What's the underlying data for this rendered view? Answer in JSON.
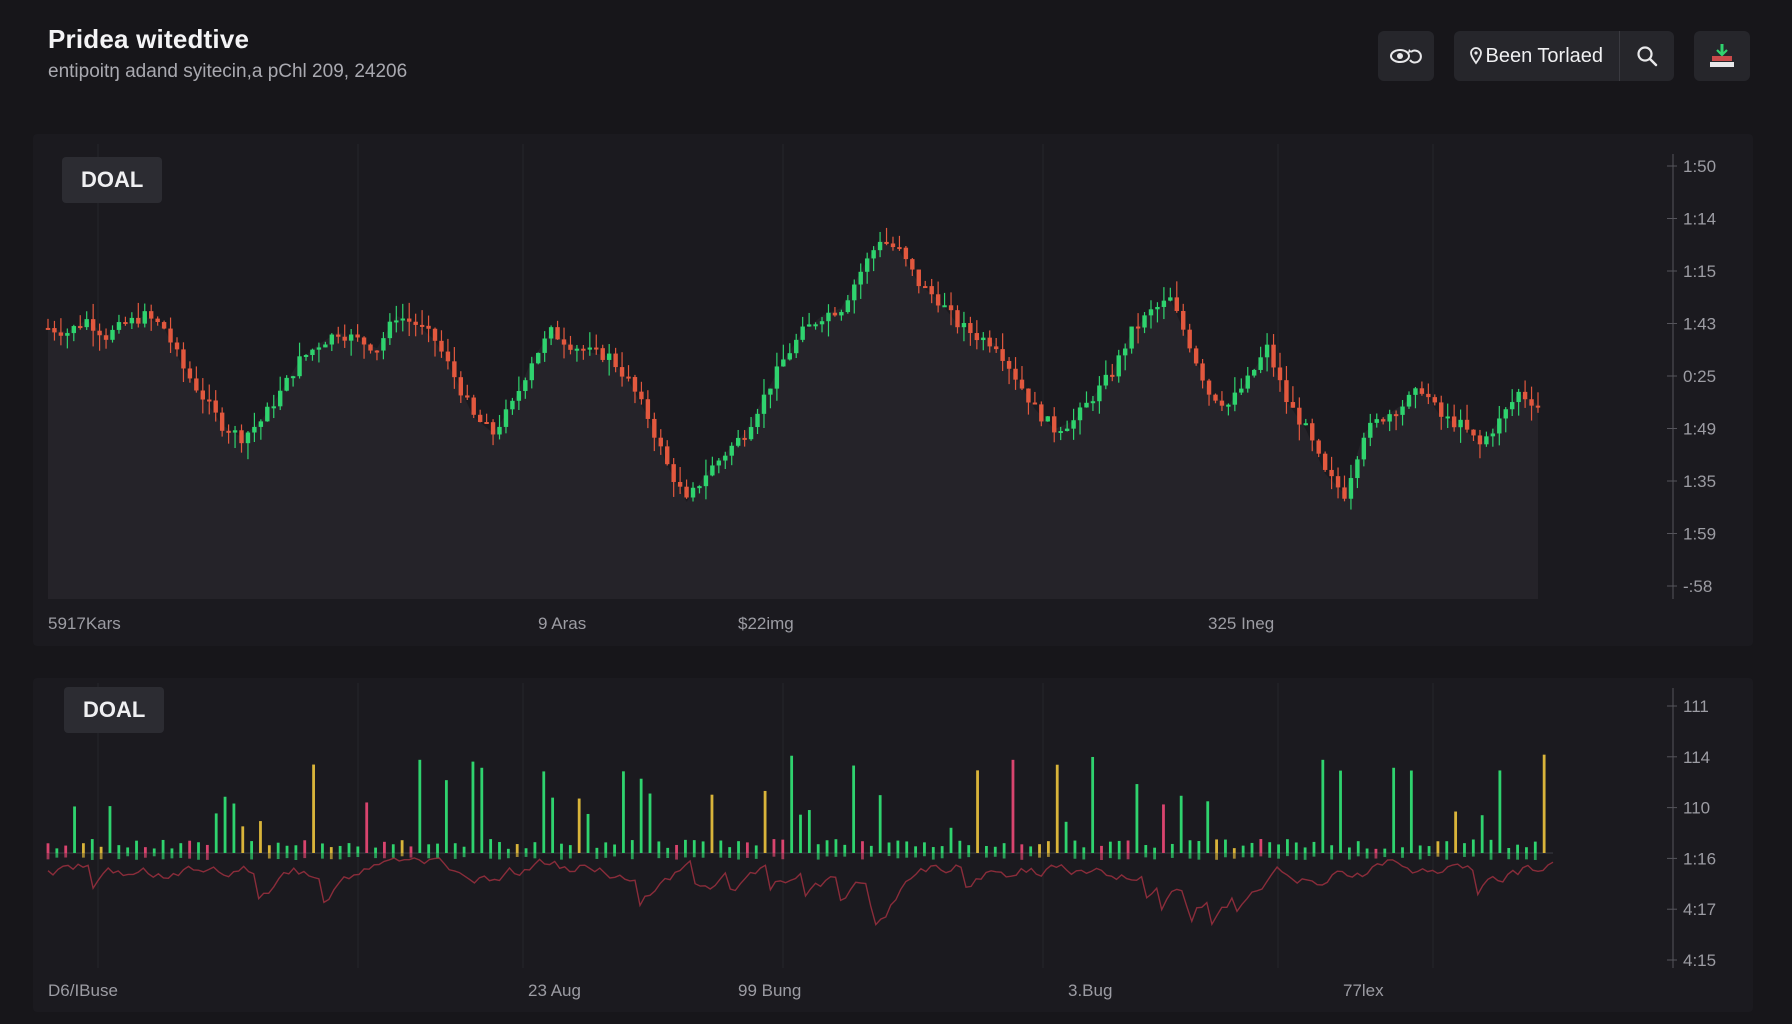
{
  "header": {
    "title": "Pridea witedtive",
    "subtitle": "entipoitŋ adand syitecin,a pChl 209, 24206"
  },
  "toolbar": {
    "dropdown_label": "Been Torlaed",
    "icons": [
      "eye-refresh-icon",
      "location-pin-icon",
      "search-icon",
      "chart-export-icon"
    ]
  },
  "colors": {
    "background": "#17161a",
    "panel": "#1b1a1f",
    "up": "#2fd36e",
    "down": "#e2583e",
    "volume_yellow": "#d9b43a",
    "volume_pink": "#d9446e",
    "indicator_line": "#8a2c3a"
  },
  "chart_data": [
    {
      "type": "candlestick",
      "label": "DOAL",
      "y_tick_labels": [
        "1:50",
        "1:14",
        "1:15",
        "1:43",
        "0:25",
        "1:49",
        "1:35",
        "1:59",
        "-:58"
      ],
      "x_tick_labels": [
        "5917Kars",
        "9 Aras",
        "$22img",
        "325 Ineg"
      ],
      "series_close": [
        1.22,
        1.21,
        1.24,
        1.2,
        1.23,
        1.25,
        1.22,
        1.12,
        1.05,
        0.98,
        0.95,
        0.99,
        1.06,
        1.14,
        1.18,
        1.21,
        1.19,
        1.17,
        1.25,
        1.23,
        1.19,
        1.1,
        1.0,
        0.96,
        1.03,
        1.14,
        1.21,
        1.18,
        1.16,
        1.15,
        1.09,
        1.0,
        0.88,
        0.79,
        0.86,
        0.91,
        0.96,
        1.05,
        1.14,
        1.21,
        1.25,
        1.27,
        1.36,
        1.44,
        1.41,
        1.33,
        1.29,
        1.23,
        1.2,
        1.18,
        1.1,
        1.02,
        0.97,
        0.99,
        1.05,
        1.11,
        1.21,
        1.26,
        1.29,
        1.18,
        1.06,
        1.03,
        1.09,
        1.17,
        1.04,
        0.97,
        0.86,
        0.81,
        0.96,
        1.0,
        1.03,
        1.07,
        1.0,
        0.98,
        0.93,
        0.99,
        1.06,
        1.03
      ]
    },
    {
      "type": "bar",
      "label": "DOAL",
      "y_tick_labels": [
        "111",
        "114",
        "110",
        "1:16",
        "4:17",
        "4:15"
      ],
      "x_tick_labels": [
        "D6/IBuse",
        "23 Aug",
        "99 Bung",
        "3.Bug",
        "77lex"
      ]
    }
  ]
}
